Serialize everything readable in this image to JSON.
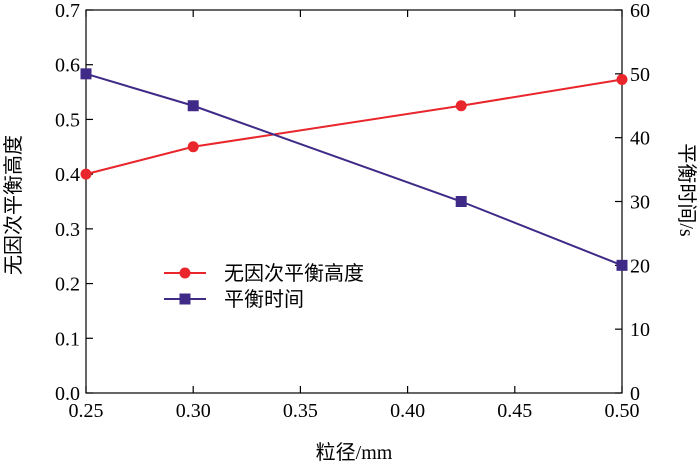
{
  "chart_data": {
    "type": "line",
    "title": "",
    "xlabel": "粒径/mm",
    "ylabel_left": "无因次平衡高度",
    "ylabel_right": "平衡时间/s",
    "xlim": [
      0.25,
      0.5
    ],
    "ylim_left": [
      0.0,
      0.7
    ],
    "ylim_right": [
      0,
      60
    ],
    "x_ticks": [
      "0.25",
      "0.30",
      "0.35",
      "0.40",
      "0.45",
      "0.50"
    ],
    "y_left_ticks": [
      "0.0",
      "0.1",
      "0.2",
      "0.3",
      "0.4",
      "0.5",
      "0.6",
      "0.7"
    ],
    "y_right_ticks": [
      "0",
      "10",
      "20",
      "30",
      "40",
      "50",
      "60"
    ],
    "grid": false,
    "legend_position": "center-left",
    "series": [
      {
        "name": "无因次平衡高度",
        "axis": "left",
        "marker": "circle",
        "color": "#e8262b",
        "x": [
          0.25,
          0.3,
          0.425,
          0.5
        ],
        "y": [
          0.4,
          0.45,
          0.525,
          0.573
        ]
      },
      {
        "name": "平衡时间",
        "axis": "right",
        "marker": "square",
        "color": "#3f2b87",
        "x": [
          0.25,
          0.3,
          0.425,
          0.5
        ],
        "y": [
          50,
          45,
          30,
          20
        ]
      }
    ]
  }
}
